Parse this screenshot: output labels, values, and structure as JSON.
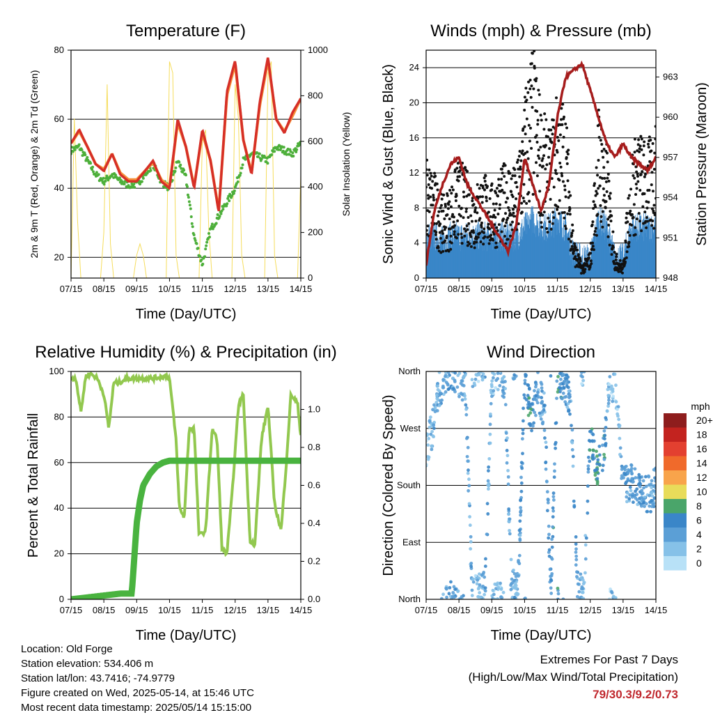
{
  "chart_data": [
    {
      "type": "line",
      "title": "Temperature (F)",
      "xlabel": "Time (Day/UTC)",
      "ylabel": "2m & 9m T (Red, Orange) & 2m Td (Green)",
      "y2label": "Solar Insolation (Yellow)",
      "ylim": [
        14,
        80
      ],
      "y2lim": [
        0,
        1000
      ],
      "yticks": [
        20,
        40,
        60,
        80
      ],
      "y2ticks": [
        0,
        200,
        400,
        600,
        800,
        1000
      ],
      "grid": true,
      "series": [
        {
          "name": "2m T",
          "color": "#d62f27",
          "x": [
            0,
            0.25,
            0.5,
            0.75,
            1,
            1.25,
            1.5,
            1.75,
            2,
            2.25,
            2.5,
            2.75,
            3,
            3.25,
            3.5,
            3.75,
            4,
            4.25,
            4.5,
            4.75,
            5,
            5.25,
            5.5,
            5.75,
            6,
            6.25,
            6.5,
            6.75,
            7
          ],
          "y": [
            53,
            57,
            52,
            47,
            45,
            50,
            44,
            42,
            42,
            45,
            48,
            42,
            40,
            60,
            52,
            40,
            57,
            48,
            33,
            68,
            77,
            54,
            44,
            65,
            78,
            60,
            56,
            62,
            66
          ]
        },
        {
          "name": "9m T",
          "color": "#f7923a",
          "x": [
            0,
            0.25,
            0.5,
            0.75,
            1,
            1.25,
            1.5,
            1.75,
            2,
            2.25,
            2.5,
            2.75,
            3,
            3.25,
            3.5,
            3.75,
            4,
            4.25,
            4.5,
            4.75,
            5,
            5.25,
            5.5,
            5.75,
            6,
            6.25,
            6.5,
            6.75,
            7
          ],
          "y": [
            53,
            56.5,
            52,
            47,
            45.5,
            50,
            44.5,
            42.5,
            42.5,
            45,
            47.5,
            42.5,
            40.5,
            59,
            52,
            40.5,
            56,
            48,
            33.5,
            67,
            76,
            54,
            44.5,
            64,
            77,
            60,
            56.5,
            61,
            66
          ]
        },
        {
          "name": "2m Td",
          "color": "#4daf3a",
          "x": [
            0,
            0.25,
            0.5,
            0.75,
            1,
            1.25,
            1.5,
            1.75,
            2,
            2.25,
            2.5,
            2.75,
            3,
            3.25,
            3.5,
            3.75,
            4,
            4.25,
            4.5,
            4.75,
            5,
            5.25,
            5.5,
            5.75,
            6,
            6.25,
            6.5,
            6.75,
            7
          ],
          "y": [
            51,
            52,
            48,
            44,
            42,
            44,
            42,
            41,
            41,
            44,
            47,
            42,
            40,
            48,
            43,
            26,
            18,
            28,
            32,
            36,
            40,
            48,
            50,
            49,
            48,
            52,
            51,
            50,
            53
          ]
        },
        {
          "name": "Solar Insolation",
          "color": "#f5dc5a",
          "axis": "y2",
          "x": [
            0,
            0.1,
            0.2,
            0.3,
            0.5,
            0.7,
            0.9,
            1.0,
            1.1,
            1.2,
            1.3,
            1.5,
            1.7,
            1.9,
            2.0,
            2.1,
            2.2,
            2.3,
            2.5,
            2.7,
            2.9,
            3.0,
            3.1,
            3.2,
            3.3,
            3.5,
            3.7,
            3.9,
            4.0,
            4.1,
            4.2,
            4.3,
            4.5,
            4.7,
            4.9,
            5.0,
            5.1,
            5.2,
            5.3,
            5.5,
            5.7,
            5.9,
            6.0,
            6.1,
            6.2,
            6.3,
            6.5,
            6.7,
            6.9,
            7.0
          ],
          "y": [
            0,
            700,
            250,
            0,
            0,
            0,
            0,
            200,
            850,
            150,
            0,
            0,
            0,
            0,
            100,
            150,
            100,
            0,
            0,
            0,
            0,
            950,
            900,
            100,
            0,
            0,
            0,
            0,
            600,
            650,
            200,
            0,
            0,
            0,
            0,
            850,
            700,
            100,
            0,
            0,
            0,
            0,
            900,
            950,
            100,
            0,
            0,
            0,
            0,
            450
          ]
        }
      ]
    },
    {
      "type": "scatter",
      "title": "Winds (mph) & Pressure (mb)",
      "xlabel": "Time (Day/UTC)",
      "ylabel": "Sonic Wind & Gust (Blue, Black)",
      "y2label": "Station Pressure (Maroon)",
      "ylim": [
        0,
        26
      ],
      "y2lim": [
        948,
        965
      ],
      "yticks": [
        0,
        4,
        8,
        12,
        16,
        20,
        24
      ],
      "y2ticks": [
        948,
        951,
        954,
        957,
        960,
        963
      ],
      "grid": true,
      "series": [
        {
          "name": "Station Pressure",
          "color": "#a61c1c",
          "axis": "y2",
          "kind": "line",
          "x": [
            0,
            0.25,
            0.5,
            0.75,
            1,
            1.25,
            1.5,
            1.75,
            2,
            2.25,
            2.5,
            2.75,
            3,
            3.25,
            3.5,
            3.75,
            4,
            4.25,
            4.5,
            4.75,
            5,
            5.25,
            5.5,
            5.75,
            6,
            6.25,
            6.5,
            6.75,
            7
          ],
          "y": [
            949,
            953,
            955,
            956.5,
            957,
            955,
            954,
            953,
            952,
            951,
            950,
            952,
            957,
            955,
            953,
            955,
            960,
            963,
            963.5,
            964,
            962,
            960,
            958,
            957,
            958,
            957,
            956.5,
            956,
            957
          ]
        },
        {
          "name": "Gust",
          "color": "#111111",
          "kind": "points",
          "x": [
            0,
            0.25,
            0.5,
            0.75,
            1,
            1.25,
            1.5,
            1.75,
            2,
            2.25,
            2.5,
            2.75,
            3,
            3.25,
            3.5,
            3.75,
            4,
            4.25,
            4.5,
            4.75,
            5,
            5.25,
            5.5,
            5.75,
            6,
            6.25,
            6.5,
            6.75,
            7
          ],
          "y": [
            9,
            8,
            6,
            7,
            9,
            8,
            7,
            8,
            7,
            8,
            9,
            8,
            14,
            18,
            13,
            11,
            14,
            13,
            3,
            1,
            2,
            13,
            10,
            2,
            1,
            10,
            11,
            10,
            12
          ]
        },
        {
          "name": "Wind",
          "color": "#3a86c8",
          "kind": "band",
          "x": [
            0,
            0.25,
            0.5,
            0.75,
            1,
            1.25,
            1.5,
            1.75,
            2,
            2.25,
            2.5,
            2.75,
            3,
            3.25,
            3.5,
            3.75,
            4,
            4.25,
            4.5,
            4.75,
            5,
            5.25,
            5.5,
            5.75,
            6,
            6.25,
            6.5,
            6.75,
            7
          ],
          "y": [
            3,
            3,
            2.5,
            3,
            3,
            3,
            3,
            3,
            3,
            3,
            3,
            3,
            4,
            5,
            4,
            4,
            5,
            4,
            1,
            0.5,
            0.5,
            5,
            4,
            0.5,
            0.5,
            4,
            4,
            4,
            4
          ]
        }
      ]
    },
    {
      "type": "line",
      "title": "Relative Humidity (%) & Precipitation (in)",
      "xlabel": "Time (Day/UTC)",
      "ylabel": "Percent & Total Rainfall",
      "ylim": [
        0,
        100
      ],
      "y2lim": [
        0,
        1.2
      ],
      "yticks": [
        0,
        20,
        40,
        60,
        80,
        100
      ],
      "y2ticks": [
        0.0,
        0.2,
        0.4,
        0.6,
        0.8,
        1.0
      ],
      "grid": true,
      "series": [
        {
          "name": "Relative Humidity",
          "color": "#92c84f",
          "x": [
            0,
            0.15,
            0.3,
            0.45,
            0.6,
            0.8,
            1.0,
            1.15,
            1.3,
            1.45,
            1.7,
            2.0,
            2.5,
            2.9,
            3.0,
            3.2,
            3.3,
            3.45,
            3.6,
            3.75,
            3.9,
            4.1,
            4.3,
            4.45,
            4.6,
            4.75,
            4.9,
            5.1,
            5.25,
            5.45,
            5.6,
            5.8,
            6.0,
            6.2,
            6.4,
            6.55,
            6.7,
            6.9,
            7.0
          ],
          "y": [
            97,
            97,
            82,
            98,
            99,
            97,
            90,
            75,
            95,
            95,
            97,
            97,
            97,
            98,
            97,
            70,
            40,
            36,
            75,
            75,
            28,
            30,
            75,
            70,
            22,
            20,
            45,
            85,
            90,
            26,
            24,
            70,
            85,
            42,
            30,
            58,
            90,
            86,
            72
          ]
        },
        {
          "name": "Total Precipitation",
          "color": "#49b33f",
          "axis": "y2",
          "x": [
            0,
            0.5,
            1.0,
            1.5,
            1.85,
            1.9,
            2.0,
            2.1,
            2.2,
            2.4,
            2.6,
            2.8,
            3.0,
            3.5,
            7.0
          ],
          "y": [
            0.0,
            0.01,
            0.02,
            0.03,
            0.03,
            0.15,
            0.4,
            0.52,
            0.6,
            0.66,
            0.7,
            0.72,
            0.73,
            0.73,
            0.73
          ]
        }
      ]
    },
    {
      "type": "scatter",
      "title": "Wind Direction",
      "xlabel": "Time (Day/UTC)",
      "ylabel": "Direction (Colored By Speed)",
      "ylim": [
        0,
        360
      ],
      "yticklabels": [
        "North",
        "East",
        "South",
        "West",
        "North"
      ],
      "grid": true,
      "legend": {
        "title": "mph",
        "position": "right",
        "labels": [
          "20+",
          "18",
          "16",
          "14",
          "12",
          "10",
          "8",
          "6",
          "4",
          "2",
          "0"
        ],
        "colors": [
          "#8e1d1d",
          "#c3231f",
          "#e34030",
          "#f06a2b",
          "#f8a44b",
          "#e8dc5a",
          "#4aa56a",
          "#3a86c8",
          "#5b9fd6",
          "#86c1e8",
          "#b8e1f7"
        ]
      },
      "series": [
        {
          "name": "direction",
          "kind": "points",
          "x": [
            0,
            0.2,
            0.4,
            0.6,
            0.8,
            1.0,
            1.2,
            1.4,
            1.6,
            1.8,
            2.0,
            2.2,
            2.4,
            2.6,
            2.8,
            3.0,
            3.2,
            3.4,
            3.6,
            3.8,
            4.0,
            4.2,
            4.4,
            4.6,
            4.8,
            5.0,
            5.2,
            5.4,
            5.6,
            5.8,
            6.0,
            6.2,
            6.4,
            6.6,
            6.8,
            7.0
          ],
          "y": [
            240,
            270,
            330,
            350,
            360,
            350,
            340,
            5,
            10,
            15,
            350,
            360,
            345,
            15,
            20,
            340,
            290,
            330,
            300,
            15,
            350,
            340,
            320,
            20,
            5,
            270,
            200,
            230,
            350,
            330,
            180,
            185,
            175,
            170,
            165,
            180
          ],
          "speed": [
            2,
            3,
            4,
            3,
            4,
            3,
            4,
            3,
            2,
            4,
            3,
            2,
            4,
            3,
            4,
            5,
            6,
            4,
            4,
            5,
            6,
            5,
            4,
            4,
            2,
            6,
            7,
            6,
            2,
            1,
            5,
            4,
            5,
            4,
            4,
            4
          ]
        }
      ]
    }
  ],
  "axes": {
    "xticks": [
      "07/15",
      "08/15",
      "09/15",
      "10/15",
      "11/15",
      "12/15",
      "13/15",
      "14/15"
    ]
  },
  "info": {
    "location": "Location: Old Forge",
    "elevation": "Station elevation: 534.406 m",
    "latlon": "Station lat/lon: 43.7416; -74.9779",
    "created": "Figure created on Wed, 2025-05-14, at 15:46 UTC",
    "recent": "Most recent data timestamp: 2025/05/14 15:15:00"
  },
  "extremes": {
    "line1": "Extremes For Past 7 Days",
    "line2": "(High/Low/Max Wind/Total Precipitation)",
    "values": "79/30.3/9.2/0.73"
  }
}
